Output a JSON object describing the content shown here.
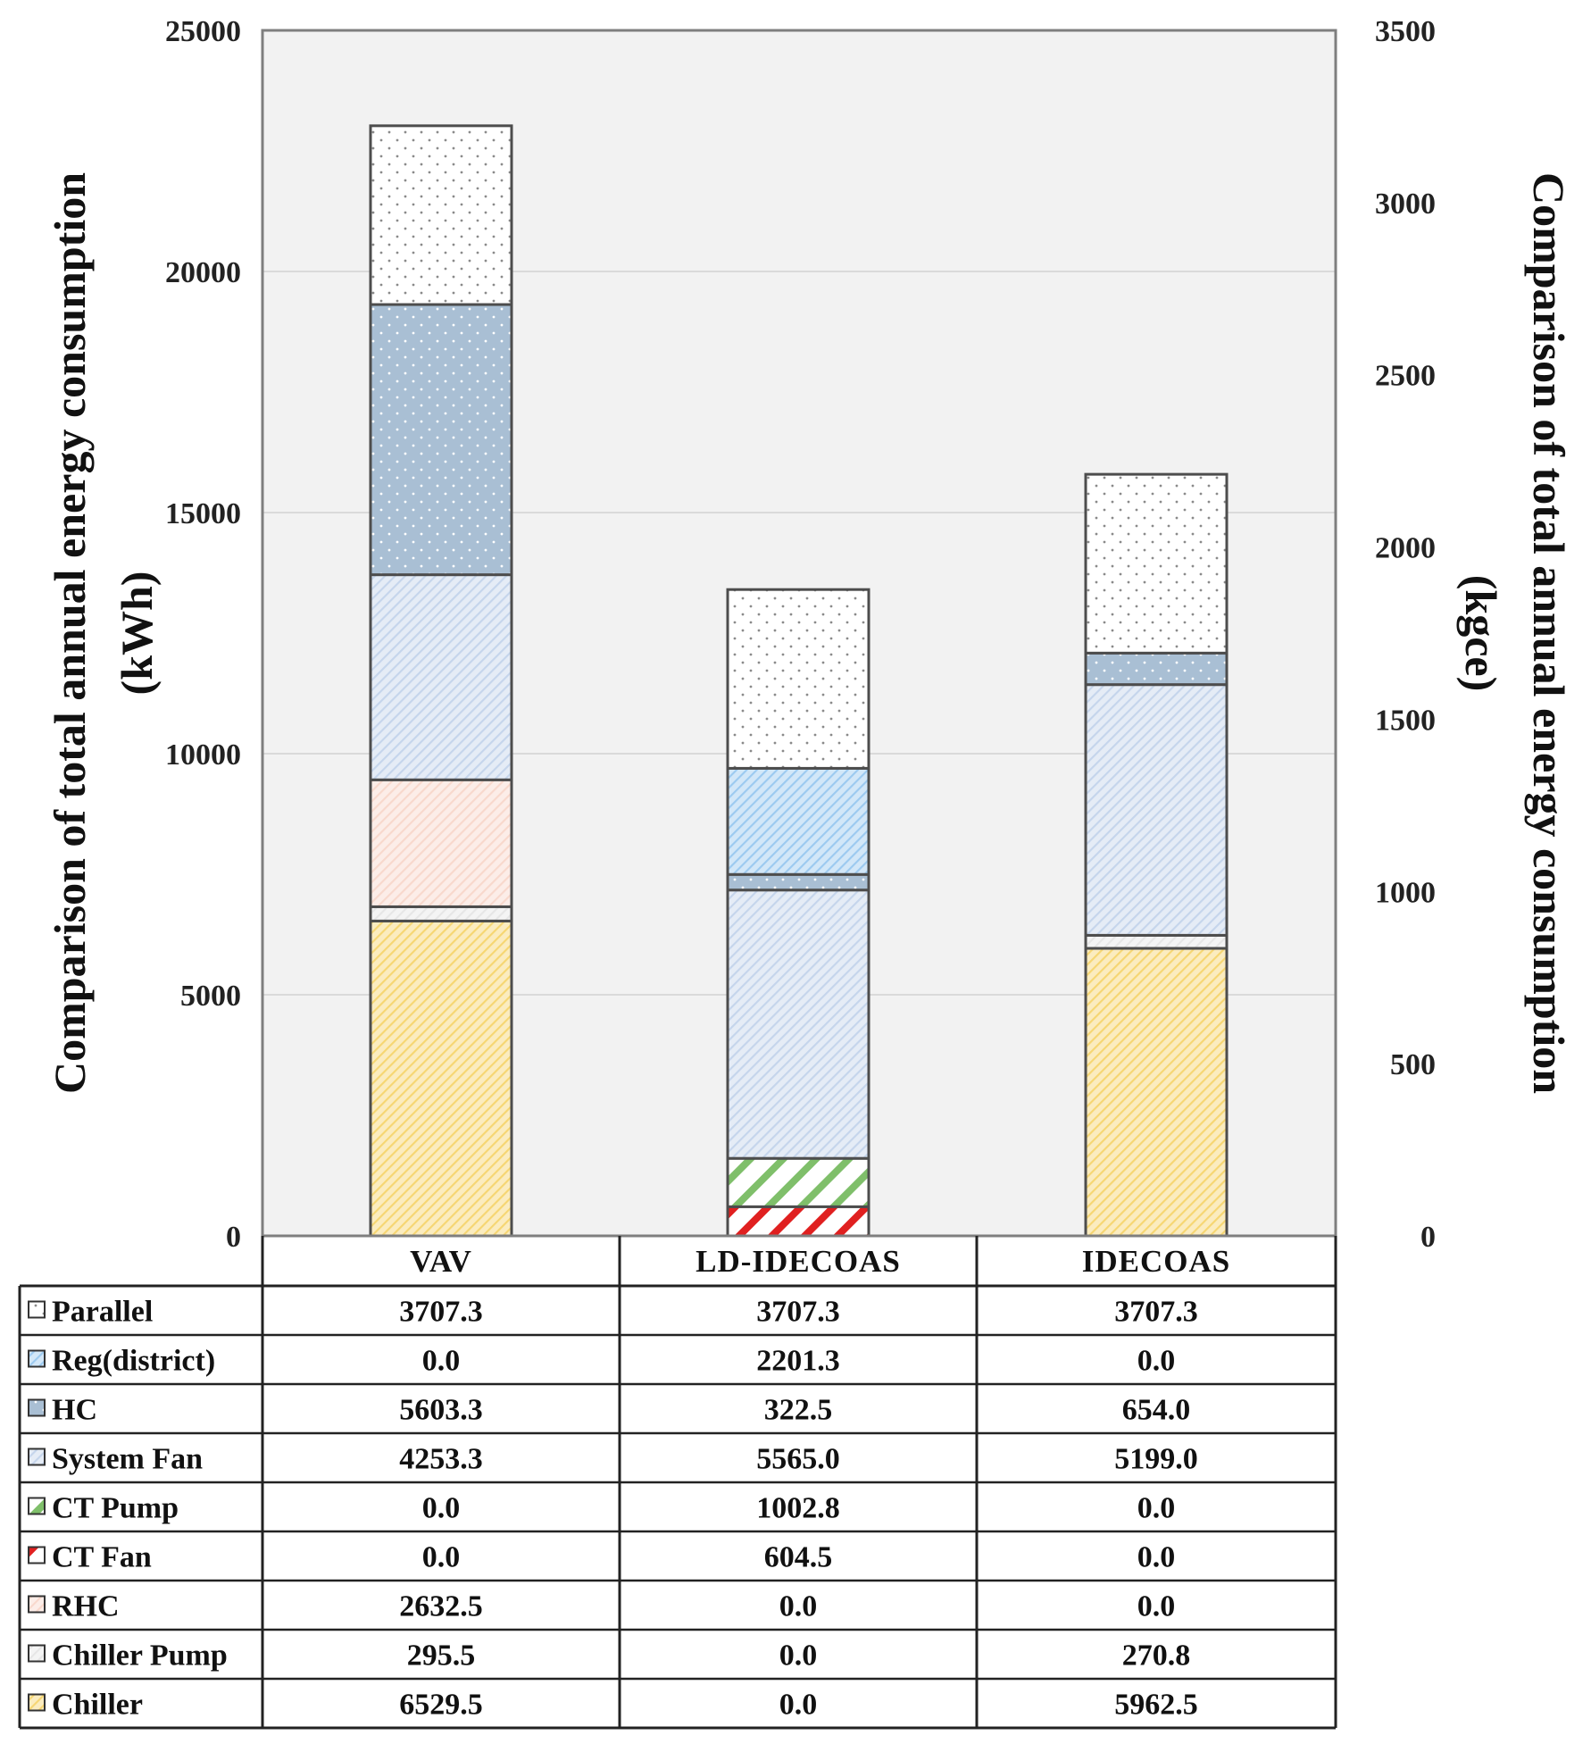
{
  "chart_data": {
    "type": "stacked-bar",
    "title": "",
    "ylabel": "Comparison of total annual energy consumption (kWh)",
    "ylabel_lines": [
      "Comparison of total annual energy consumption",
      "(kWh)"
    ],
    "y2label": "Comparison of total annual energy consumption (kgce)",
    "y2label_lines": [
      "Comparison of total annual energy consumption",
      "(kgce)"
    ],
    "ylim": [
      0,
      25000
    ],
    "y2lim": [
      0,
      3500
    ],
    "yticks": [
      "0",
      "5000",
      "10000",
      "15000",
      "20000",
      "25000"
    ],
    "y2ticks": [
      "0",
      "500",
      "1000",
      "1500",
      "2000",
      "2500",
      "3000",
      "3500"
    ],
    "grid": true,
    "categories": [
      "VAV",
      "LD-IDECOAS",
      "IDECOAS"
    ],
    "series": [
      {
        "name": "Chiller",
        "values": [
          6529.5,
          0.0,
          5962.5
        ],
        "labels": [
          "6529.5",
          "0.0",
          "5962.5"
        ],
        "color": "#f6d672",
        "pattern": "hatch-fine"
      },
      {
        "name": "Chiller Pump",
        "values": [
          295.5,
          0.0,
          270.8
        ],
        "labels": [
          "295.5",
          "0.0",
          "270.8"
        ],
        "color": "#e6e6e6",
        "pattern": "hatch-fine"
      },
      {
        "name": "RHC",
        "values": [
          2632.5,
          0.0,
          0.0
        ],
        "labels": [
          "2632.5",
          "0.0",
          "0.0"
        ],
        "color": "#f8d8cc",
        "pattern": "hatch-fine"
      },
      {
        "name": "CT Fan",
        "values": [
          0.0,
          604.5,
          0.0
        ],
        "labels": [
          "0.0",
          "604.5",
          "0.0"
        ],
        "color": "#e02020",
        "pattern": "hatch-wide"
      },
      {
        "name": "CT Pump",
        "values": [
          0.0,
          1002.8,
          0.0
        ],
        "labels": [
          "0.0",
          "1002.8",
          "0.0"
        ],
        "color": "#7fbf6a",
        "pattern": "hatch-wide"
      },
      {
        "name": "System Fan",
        "values": [
          4253.3,
          5565.0,
          5199.0
        ],
        "labels": [
          "4253.3",
          "5565.0",
          "5199.0"
        ],
        "color": "#c5d5ec",
        "pattern": "hatch-fine"
      },
      {
        "name": "HC",
        "values": [
          5603.3,
          322.5,
          654.0
        ],
        "labels": [
          "5603.3",
          "322.5",
          "654.0"
        ],
        "color": "#a9bfd4",
        "pattern": "dots"
      },
      {
        "name": "Reg(district)",
        "values": [
          0.0,
          2201.3,
          0.0
        ],
        "labels": [
          "0.0",
          "2201.3",
          "0.0"
        ],
        "color": "#9ccaf0",
        "pattern": "hatch-fine"
      },
      {
        "name": "Parallel",
        "values": [
          3707.3,
          3707.3,
          3707.3
        ],
        "labels": [
          "3707.3",
          "3707.3",
          "3707.3"
        ],
        "color": "#ffffff",
        "pattern": "dots-dark"
      }
    ],
    "table_row_order": [
      "Parallel",
      "Reg(district)",
      "HC",
      "System Fan",
      "CT Pump",
      "CT Fan",
      "RHC",
      "Chiller Pump",
      "Chiller"
    ],
    "legend_placement": "data-table-left"
  }
}
